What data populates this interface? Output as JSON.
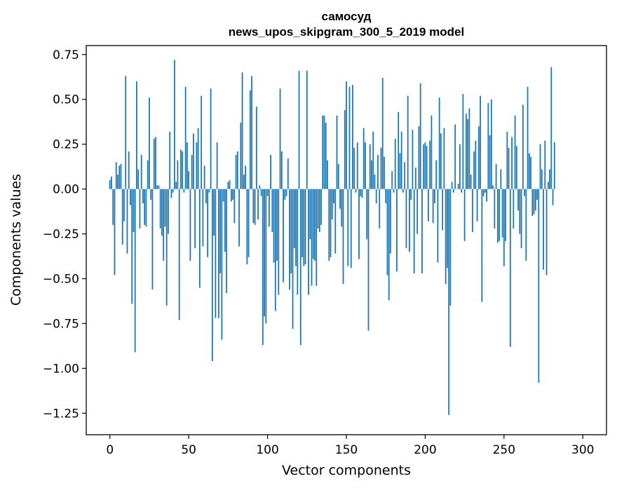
{
  "chart_data": {
    "type": "bar",
    "title": "самосуд",
    "subtitle": "news_upos_skipgram_300_5_2019 model",
    "xlabel": "Vector components",
    "ylabel": "Components values",
    "xlim": [
      -15,
      315
    ],
    "ylim": [
      -1.37,
      0.8
    ],
    "xticks": [
      0,
      50,
      100,
      150,
      200,
      250,
      300
    ],
    "xtick_labels": [
      "0",
      "50",
      "100",
      "150",
      "200",
      "250",
      "300"
    ],
    "yticks": [
      0.75,
      0.5,
      0.25,
      0.0,
      -0.25,
      -0.5,
      -0.75,
      -1.0,
      -1.25
    ],
    "ytick_labels": [
      "0.75",
      "0.50",
      "0.25",
      "0.00",
      "−0.25",
      "−0.50",
      "−0.75",
      "−1.00",
      "−1.25"
    ],
    "grid": false,
    "bar_color": "#1f77b4",
    "values": [
      0.05,
      0.07,
      -0.2,
      -0.48,
      0.15,
      0.08,
      0.13,
      0.14,
      -0.31,
      -0.18,
      0.63,
      -0.36,
      0.21,
      -0.09,
      -0.64,
      -0.24,
      -0.91,
      0.6,
      0.11,
      -0.22,
      0.19,
      -0.08,
      -0.2,
      -0.21,
      0.16,
      0.51,
      -0.06,
      -0.56,
      0.28,
      0.29,
      0.02,
      0.02,
      -0.22,
      -0.26,
      -0.4,
      -0.21,
      -0.65,
      -0.25,
      0.32,
      -0.05,
      -0.02,
      0.72,
      0.04,
      0.16,
      -0.73,
      0.22,
      0.21,
      -0.02,
      0.57,
      0.26,
      0.1,
      -0.4,
      0.19,
      0.31,
      -0.33,
      0.26,
      0.34,
      -0.55,
      0.52,
      -0.32,
      0.13,
      -0.08,
      -0.38,
      -0.02,
      0.56,
      -0.96,
      -0.26,
      -0.72,
      0.26,
      -0.72,
      -0.47,
      -0.84,
      -0.07,
      -0.35,
      -0.58,
      0.04,
      0.05,
      -0.07,
      -0.06,
      -0.19,
      0.19,
      0.21,
      -0.32,
      0.37,
      0.65,
      0.08,
      0.13,
      -0.42,
      -0.38,
      0.55,
      0.63,
      -0.19,
      -0.2,
      0.46,
      -0.17,
      0.02,
      -0.04,
      -0.87,
      -0.71,
      -0.75,
      -0.04,
      -0.21,
      0.19,
      -0.24,
      -0.41,
      -0.68,
      -0.4,
      -0.59,
      0.56,
      0.21,
      -0.52,
      -0.06,
      -0.04,
      0.17,
      -0.56,
      -0.47,
      -0.78,
      -0.33,
      -0.43,
      -0.59,
      0.66,
      -0.87,
      -0.38,
      -0.43,
      -0.42,
      0.66,
      -0.59,
      -0.28,
      -0.54,
      -0.39,
      -0.4,
      -0.54,
      -0.22,
      -0.24,
      -0.2,
      0.41,
      0.41,
      0.37,
      0.16,
      -0.4,
      -0.38,
      -0.17,
      -0.08,
      -0.36,
      0.41,
      0.14,
      -0.11,
      -0.21,
      -0.53,
      0.44,
      0.6,
      -0.43,
      0.57,
      -0.44,
      0.58,
      0.23,
      -0.02,
      0.26,
      -0.39,
      -0.04,
      -0.05,
      0.34,
      0.26,
      -0.28,
      -0.79,
      0.25,
      0.16,
      0.32,
      0.08,
      -0.08,
      0.19,
      -0.22,
      0.23,
      0.62,
      0.18,
      -0.08,
      -0.48,
      -0.62,
      -0.36,
      0.1,
      -0.02,
      0.28,
      -0.46,
      0.43,
      0.2,
      0.32,
      -0.02,
      0.15,
      -0.33,
      0.52,
      -0.35,
      -0.06,
      0.33,
      -0.47,
      0.12,
      -0.25,
      0.35,
      0.59,
      -0.47,
      0.25,
      0.26,
      0.24,
      -0.18,
      0.27,
      0.41,
      -0.19,
      -0.08,
      0.16,
      -0.41,
      0.51,
      0.31,
      -0.23,
      0.34,
      -0.53,
      -0.44,
      -1.26,
      -0.65,
      0.04,
      -0.02,
      0.36,
      0.0,
      0.03,
      0.25,
      -0.02,
      0.53,
      -0.29,
      0.42,
      0.39,
      0.45,
      0.08,
      -0.24,
      0.21,
      0.27,
      -0.18,
      0.35,
      0.52,
      -0.63,
      -0.04,
      -0.02,
      -0.07,
      0.48,
      0.3,
      0.5,
      0.02,
      -0.22,
      0.14,
      -0.3,
      -0.29,
      0.11,
      -0.27,
      -0.43,
      -0.29,
      0.32,
      0.23,
      -0.88,
      0.29,
      -0.22,
      0.41,
      0.24,
      -0.12,
      -0.25,
      -0.33,
      0.47,
      -0.04,
      -0.4,
      0.57,
      0.2,
      0.18,
      -0.15,
      -0.14,
      -0.12,
      -0.06,
      -1.08,
      0.25,
      0.11,
      -0.45,
      0.27,
      -0.48,
      0.04,
      0.11,
      0.68,
      -0.09,
      0.26
    ]
  }
}
